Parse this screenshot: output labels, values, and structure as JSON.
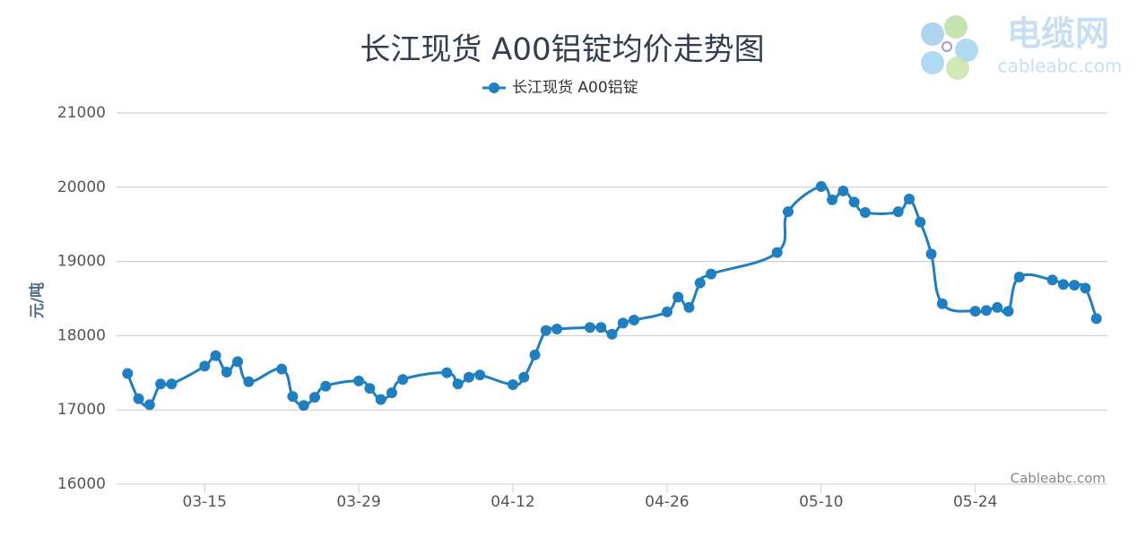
{
  "chart_data": {
    "type": "line",
    "title": "长江现货 A00铝锭均价走势图",
    "y_label": "元/吨",
    "credits": "Cableabc.com",
    "logo": {
      "name": "电缆网",
      "domain": "cableabc.com"
    },
    "x": [
      "03-08",
      "03-09",
      "03-10",
      "03-11",
      "03-12",
      "03-15",
      "03-16",
      "03-17",
      "03-18",
      "03-19",
      "03-22",
      "03-23",
      "03-24",
      "03-25",
      "03-26",
      "03-29",
      "03-30",
      "03-31",
      "04-01",
      "04-02",
      "04-06",
      "04-07",
      "04-08",
      "04-09",
      "04-12",
      "04-13",
      "04-14",
      "04-15",
      "04-16",
      "04-19",
      "04-20",
      "04-21",
      "04-22",
      "04-23",
      "04-26",
      "04-27",
      "04-28",
      "04-29",
      "04-30",
      "05-06",
      "05-07",
      "05-10",
      "05-11",
      "05-12",
      "05-13",
      "05-14",
      "05-17",
      "05-18",
      "05-19",
      "05-20",
      "05-21",
      "05-24",
      "05-25",
      "05-26",
      "05-27",
      "05-28",
      "05-31",
      "06-01",
      "06-02",
      "06-03",
      "06-04"
    ],
    "series": [
      {
        "name": "长江现货 A00铝锭",
        "color": "#1f7fc1",
        "values": [
          17490,
          17150,
          17070,
          17350,
          17350,
          17590,
          17730,
          17510,
          17650,
          17380,
          17550,
          17180,
          17060,
          17170,
          17320,
          17390,
          17290,
          17140,
          17230,
          17410,
          17500,
          17350,
          17440,
          17470,
          17340,
          17440,
          17740,
          18070,
          18090,
          18110,
          18110,
          18020,
          18170,
          18210,
          18320,
          18520,
          18380,
          18710,
          18830,
          19120,
          19670,
          20010,
          19830,
          19950,
          19800,
          19660,
          19670,
          19840,
          19530,
          19100,
          18430,
          18330,
          18340,
          18380,
          18330,
          18790,
          18750,
          18690,
          18680,
          18640,
          18230
        ]
      }
    ],
    "xlim": [
      "03-07",
      "06-05"
    ],
    "xticks": [
      "03-15",
      "03-29",
      "04-12",
      "04-26",
      "05-10",
      "05-24"
    ],
    "ylim": [
      16000,
      21000
    ],
    "yticks": [
      16000,
      17000,
      18000,
      19000,
      20000,
      21000
    ],
    "grid": true
  }
}
